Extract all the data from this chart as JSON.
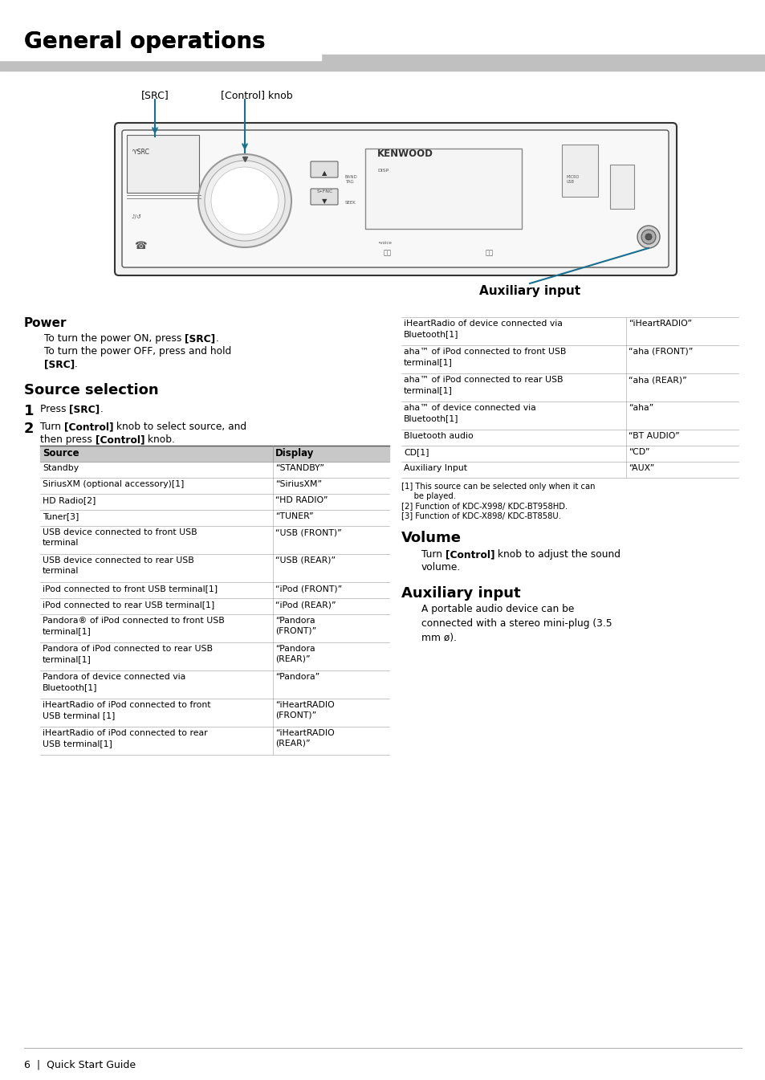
{
  "page_bg": "#ffffff",
  "title": "General operations",
  "title_bar_color": "#c0c0c0",
  "title_fontsize": 20,
  "table_header_bg": "#c8c8c8",
  "table_rows_left": [
    [
      "Standby",
      "“STANDBY”",
      1
    ],
    [
      "SiriusXM (optional accessory)[1]",
      "“SiriusXM”",
      1
    ],
    [
      "HD Radio[2]",
      "“HD RADIO”",
      1
    ],
    [
      "Tuner[3]",
      "“TUNER”",
      1
    ],
    [
      "USB device connected to front USB\nterminal",
      "“USB (FRONT)”",
      2
    ],
    [
      "USB device connected to rear USB\nterminal",
      "“USB (REAR)”",
      2
    ],
    [
      "iPod connected to front USB terminal[1]",
      "“iPod (FRONT)”",
      1
    ],
    [
      "iPod connected to rear USB terminal[1]",
      "“iPod (REAR)”",
      1
    ],
    [
      "Pandora® of iPod connected to front USB\nterminal[1]",
      "“Pandora\n(FRONT)”",
      2
    ],
    [
      "Pandora of iPod connected to rear USB\nterminal[1]",
      "“Pandora\n(REAR)”",
      2
    ],
    [
      "Pandora of device connected via\nBluetooth[1]",
      "“Pandora”",
      2
    ],
    [
      "iHeartRadio of iPod connected to front\nUSB terminal [1]",
      "“iHeartRADIO\n(FRONT)”",
      2
    ],
    [
      "iHeartRadio of iPod connected to rear\nUSB terminal[1]",
      "“iHeartRADIO\n(REAR)”",
      2
    ]
  ],
  "table_rows_right": [
    [
      "iHeartRadio of device connected via\nBluetooth[1]",
      "“iHeartRADIO”",
      2
    ],
    [
      "aha™ of iPod connected to front USB\nterminal[1]",
      "“aha (FRONT)”",
      2
    ],
    [
      "aha™ of iPod connected to rear USB\nterminal[1]",
      "“aha (REAR)”",
      2
    ],
    [
      "aha™ of device connected via\nBluetooth[1]",
      "“aha”",
      2
    ],
    [
      "Bluetooth audio",
      "“BT AUDIO”",
      1
    ],
    [
      "CD[1]",
      "“CD”",
      1
    ],
    [
      "Auxiliary Input",
      "“AUX”",
      1
    ]
  ],
  "footnotes": [
    "[1] This source can be selected only when it can",
    "     be played.",
    "[2] Function of KDC-X998/ KDC-BT958HD.",
    "[3] Function of KDC-X898/ KDC-BT858U."
  ],
  "footer_text": "6  |  Quick Start Guide",
  "annotation_line_color": "#1a6e8e"
}
